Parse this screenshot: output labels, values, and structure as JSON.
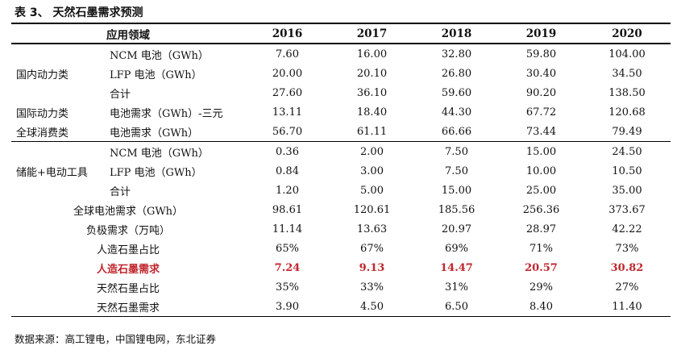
{
  "title": "表 3、 天然石墨需求预测",
  "header": {
    "domain": "应用领域",
    "years": [
      "2016",
      "2017",
      "2018",
      "2019",
      "2020"
    ]
  },
  "groups": {
    "domestic": "国内动力类",
    "intl": "国际动力类",
    "consumer": "全球消费类",
    "storage": "储能+电动工具"
  },
  "rows": {
    "dom_ncm": {
      "label": "NCM 电池（GWh）",
      "v": [
        "7.60",
        "16.00",
        "32.80",
        "59.80",
        "104.00"
      ]
    },
    "dom_lfp": {
      "label": "LFP 电池（GWh）",
      "v": [
        "20.00",
        "20.10",
        "26.80",
        "30.40",
        "34.50"
      ]
    },
    "dom_total": {
      "label": "合计",
      "v": [
        "27.60",
        "36.10",
        "59.60",
        "90.20",
        "138.50"
      ]
    },
    "intl": {
      "label": "电池需求（GWh）-三元",
      "v": [
        "13.11",
        "18.40",
        "44.30",
        "67.72",
        "120.68"
      ]
    },
    "consumer": {
      "label": "电池需求（GWh）",
      "v": [
        "56.70",
        "61.11",
        "66.66",
        "73.44",
        "79.49"
      ]
    },
    "st_ncm": {
      "label": "NCM 电池（GWh）",
      "v": [
        "0.36",
        "2.00",
        "7.50",
        "15.00",
        "24.50"
      ]
    },
    "st_lfp": {
      "label": "LFP 电池（GWh）",
      "v": [
        "0.84",
        "3.00",
        "7.50",
        "10.00",
        "10.50"
      ]
    },
    "st_total": {
      "label": "合计",
      "v": [
        "1.20",
        "5.00",
        "15.00",
        "25.00",
        "35.00"
      ]
    },
    "global": {
      "label": "全球电池需求（GWh）",
      "v": [
        "98.61",
        "120.61",
        "185.56",
        "256.36",
        "373.67"
      ]
    },
    "anode": {
      "label": "负极需求（万吨）",
      "v": [
        "11.14",
        "13.63",
        "20.97",
        "28.97",
        "42.22"
      ]
    },
    "art_share": {
      "label": "人造石墨占比",
      "v": [
        "65%",
        "67%",
        "69%",
        "71%",
        "73%"
      ]
    },
    "art_demand": {
      "label": "人造石墨需求",
      "v": [
        "7.24",
        "9.13",
        "14.47",
        "20.57",
        "30.82"
      ]
    },
    "nat_share": {
      "label": "天然石墨占比",
      "v": [
        "35%",
        "33%",
        "31%",
        "29%",
        "27%"
      ]
    },
    "nat_demand": {
      "label": "天然石墨需求",
      "v": [
        "3.90",
        "4.50",
        "6.50",
        "8.40",
        "11.40"
      ]
    }
  },
  "source": "数据来源：高工锂电，中国锂电网，东北证券",
  "highlight_color": "#c0262d"
}
